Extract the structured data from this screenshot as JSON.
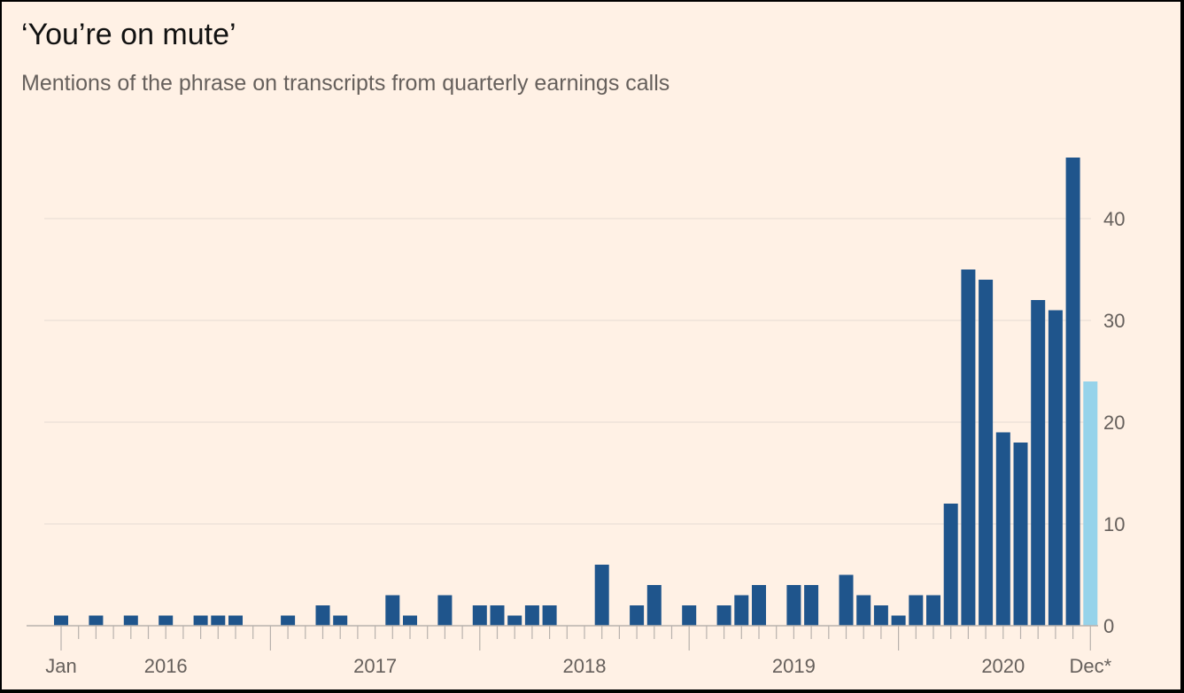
{
  "chart_data": {
    "type": "bar",
    "title": "‘You’re on mute’",
    "subtitle": "Mentions of the phrase on transcripts from quarterly earnings calls",
    "xlabel": "",
    "ylabel": "",
    "ylim": [
      0,
      48
    ],
    "yticks": [
      0,
      10,
      20,
      30,
      40
    ],
    "grid": true,
    "x_note": "monthly bars, 60 months; last bar partial (Dec*)",
    "x_tick_labels": [
      {
        "label": "Jan",
        "bar_index": 0
      },
      {
        "label": "2016",
        "bar_index": 6
      },
      {
        "label": "2017",
        "bar_index": 18
      },
      {
        "label": "2018",
        "bar_index": 30
      },
      {
        "label": "2019",
        "bar_index": 42
      },
      {
        "label": "2020",
        "bar_index": 54
      },
      {
        "label": "Dec*",
        "bar_index": 59
      }
    ],
    "major_tick_indices": [
      0,
      12,
      24,
      36,
      48,
      59
    ],
    "values": [
      1,
      0,
      1,
      0,
      1,
      0,
      1,
      0,
      1,
      1,
      1,
      0,
      0,
      1,
      0,
      2,
      1,
      0,
      0,
      3,
      1,
      0,
      3,
      0,
      2,
      2,
      1,
      2,
      2,
      0,
      0,
      6,
      0,
      2,
      4,
      0,
      2,
      0,
      2,
      3,
      4,
      0,
      4,
      4,
      0,
      5,
      3,
      2,
      1,
      3,
      3,
      12,
      35,
      34,
      19,
      18,
      32,
      31,
      46,
      24
    ],
    "highlight_index": 59,
    "colors": {
      "bar": "#1f558c",
      "highlight": "#96d3ea",
      "grid": "#e6dcd3",
      "axis": "#b8b2ad",
      "background": "#fff1e5"
    }
  }
}
